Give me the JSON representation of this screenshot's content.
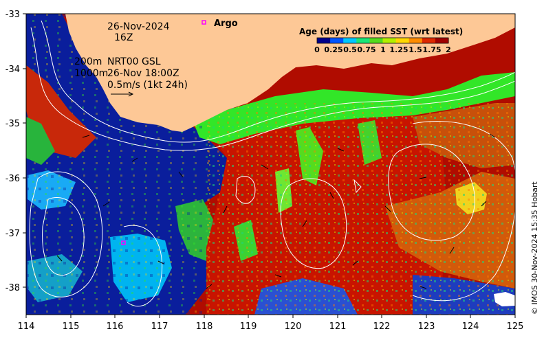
{
  "map": {
    "date_line": "26-Nov-2024",
    "hour_line": "16Z",
    "contour_200": "200m",
    "contour_1000": "1000m",
    "source_line": "NRT00 GSL",
    "source_time": "26-Nov 18:00Z",
    "vector_scale": "0.5m/s (1kt 24h)",
    "legend_argo": "Argo",
    "credit": "© IMOS 30-Nov-2024 15:35 Hobart"
  },
  "colorbar": {
    "title": "Age (days) of filled SST (wrt latest)",
    "ticks": [
      "0",
      "0.25",
      "0.5",
      "0.75",
      "1",
      "1.25",
      "1.5",
      "1.75",
      "2"
    ],
    "colors": [
      "#00008b",
      "#0055ff",
      "#00c8ff",
      "#19e678",
      "#55dc1e",
      "#b4f000",
      "#ffd800",
      "#ff8c00",
      "#dc2800",
      "#a00000"
    ]
  },
  "axes": {
    "x_ticks": [
      "114",
      "115",
      "116",
      "117",
      "118",
      "119",
      "120",
      "121",
      "122",
      "123",
      "124",
      "125"
    ],
    "y_ticks": [
      "-33",
      "-34",
      "-35",
      "-36",
      "-37",
      "-38"
    ],
    "xlim": [
      114,
      125
    ],
    "ylim": [
      -38.5,
      -33
    ]
  },
  "colors": {
    "land": "#fdc896",
    "deep_blue": "#0a1e9c",
    "dark_red": "#b00c00",
    "orange": "#d25a0a",
    "bright_green": "#32e628",
    "argo_marker": "#ff00ff"
  }
}
